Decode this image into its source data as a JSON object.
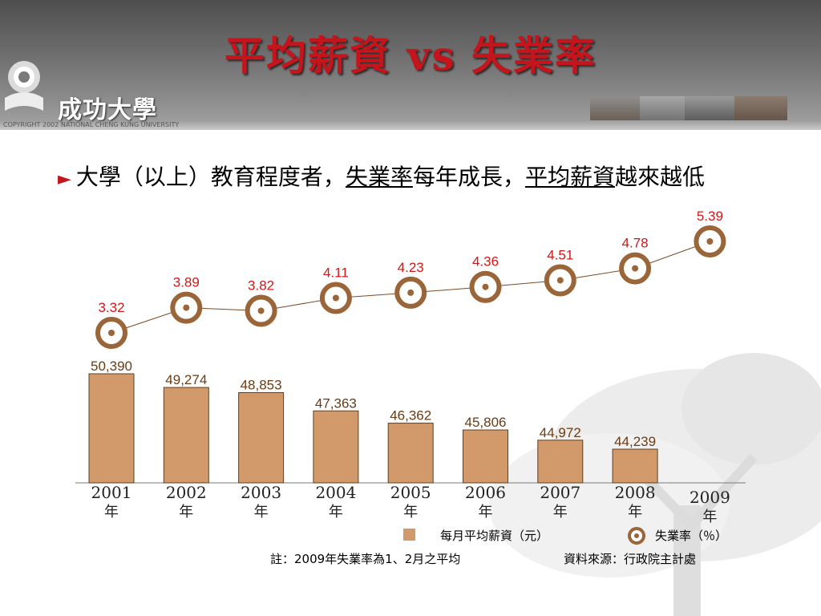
{
  "slide": {
    "title": "平均薪資 vs 失業率",
    "logo_name": "成功大學",
    "copyright": "COPYRIGHT 2002 NATIONAL CHENG KUNG UNIVERSITY"
  },
  "bullet": {
    "marker": "►",
    "part1": "大學（以上）教育程度者，",
    "part2": "失業率",
    "part3": "每年成長，",
    "part4": "平均薪資",
    "part5": "越來越低"
  },
  "chart_data": {
    "type": "bar",
    "categories": [
      "2001年",
      "2002年",
      "2003年",
      "2004年",
      "2005年",
      "2006年",
      "2007年",
      "2008年",
      "2009年"
    ],
    "series": [
      {
        "name": "每月平均薪資（元）",
        "type": "bar",
        "values": [
          50390,
          49274,
          48853,
          47363,
          46362,
          45806,
          44972,
          44239,
          null
        ],
        "labels": [
          "50,390",
          "49,274",
          "48,853",
          "47,363",
          "46,362",
          "45,806",
          "44,972",
          "44,239",
          ""
        ]
      },
      {
        "name": "失業率（％）",
        "type": "line",
        "values": [
          3.32,
          3.89,
          3.82,
          4.11,
          4.23,
          4.36,
          4.51,
          4.78,
          5.39
        ],
        "labels": [
          "3.32",
          "3.89",
          "3.82",
          "4.11",
          "4.23",
          "4.36",
          "4.51",
          "4.78",
          "5.39"
        ]
      }
    ],
    "colors": {
      "bar": "#d2996a",
      "bar_stroke": "#5e4122",
      "ring": "#9a6538",
      "line": "#7a4a25",
      "rate_label": "#d01818",
      "wage_label": "#6a3c14"
    }
  },
  "legend": {
    "bar_label": "每月平均薪資（元）",
    "line_label": "失業率（％）"
  },
  "footer": {
    "note": "註：2009年失業率為1、2月之平均",
    "source": "資料來源：行政院主計處"
  }
}
